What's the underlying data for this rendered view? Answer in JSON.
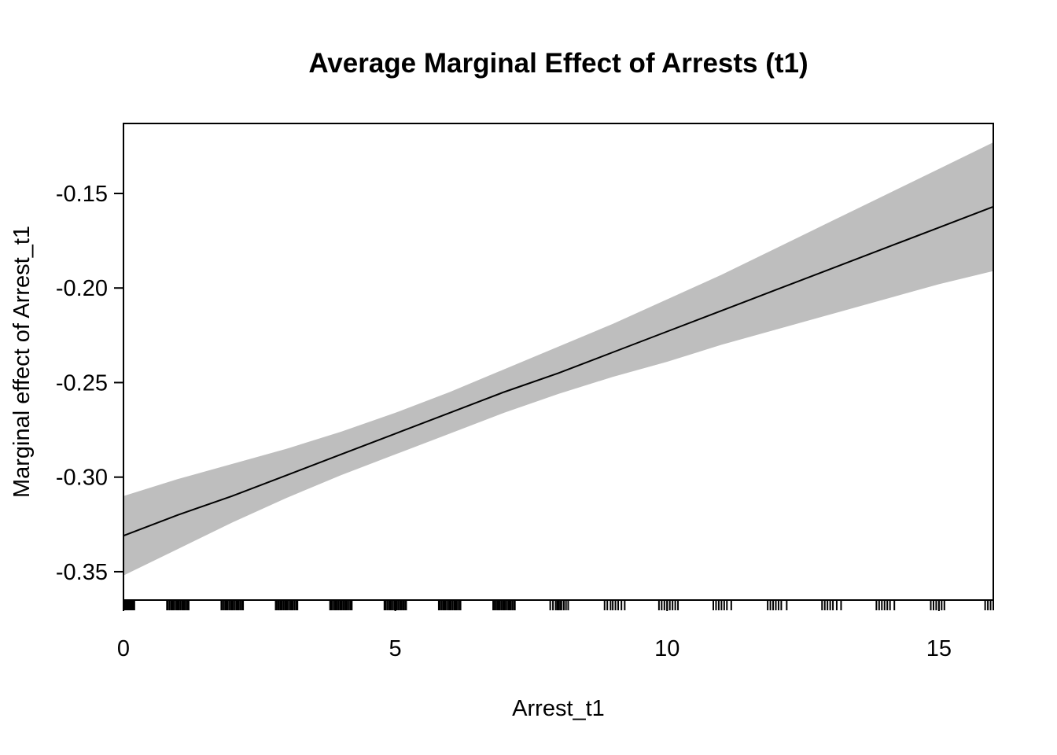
{
  "chart_data": {
    "type": "line",
    "title": "Average Marginal Effect of Arrests (t1)",
    "xlabel": "Arrest_t1",
    "ylabel": "Marginal effect of Arrest_t1",
    "xlim": [
      0,
      16
    ],
    "ylim": [
      -0.365,
      -0.113
    ],
    "xticks": [
      0,
      5,
      10,
      15
    ],
    "xtick_labels": [
      "0",
      "5",
      "10",
      "15"
    ],
    "yticks": [
      -0.35,
      -0.3,
      -0.25,
      -0.2,
      -0.15
    ],
    "ytick_labels": [
      "-0.35",
      "-0.30",
      "-0.25",
      "-0.20",
      "-0.15"
    ],
    "grid": false,
    "series": [
      {
        "x": [
          0,
          1,
          2,
          3,
          4,
          5,
          6,
          7,
          8,
          9,
          10,
          11,
          12,
          13,
          14,
          15,
          16
        ],
        "y": [
          -0.331,
          -0.32,
          -0.31,
          -0.299,
          -0.288,
          -0.277,
          -0.266,
          -0.255,
          -0.245,
          -0.234,
          -0.223,
          -0.212,
          -0.201,
          -0.19,
          -0.179,
          -0.168,
          -0.157
        ],
        "ci_lower": [
          -0.352,
          -0.338,
          -0.324,
          -0.311,
          -0.299,
          -0.288,
          -0.277,
          -0.266,
          -0.256,
          -0.247,
          -0.239,
          -0.23,
          -0.222,
          -0.214,
          -0.206,
          -0.198,
          -0.191
        ],
        "ci_upper": [
          -0.31,
          -0.301,
          -0.293,
          -0.285,
          -0.276,
          -0.266,
          -0.255,
          -0.243,
          -0.231,
          -0.219,
          -0.206,
          -0.193,
          -0.179,
          -0.165,
          -0.151,
          -0.137,
          -0.123
        ],
        "line_color": "#000000",
        "ci_color": "#bebebe"
      }
    ],
    "rug": [
      0,
      0.02,
      0.04,
      0.06,
      0.08,
      0.1,
      0.12,
      0.14,
      0.16,
      0.18,
      0.2,
      0.8,
      0.82,
      0.85,
      0.88,
      0.9,
      0.92,
      0.95,
      0.98,
      1.0,
      1.02,
      1.05,
      1.08,
      1.1,
      1.12,
      1.15,
      1.18,
      1.2,
      1.8,
      1.82,
      1.85,
      1.88,
      1.9,
      1.92,
      1.95,
      1.98,
      2.0,
      2.02,
      2.05,
      2.08,
      2.1,
      2.12,
      2.15,
      2.18,
      2.2,
      2.8,
      2.82,
      2.85,
      2.88,
      2.9,
      2.92,
      2.95,
      2.98,
      3.0,
      3.02,
      3.05,
      3.08,
      3.1,
      3.12,
      3.15,
      3.18,
      3.2,
      3.8,
      3.82,
      3.85,
      3.88,
      3.9,
      3.92,
      3.95,
      3.98,
      4.0,
      4.02,
      4.05,
      4.08,
      4.1,
      4.12,
      4.15,
      4.18,
      4.2,
      4.8,
      4.82,
      4.85,
      4.88,
      4.9,
      4.92,
      4.95,
      4.98,
      5.0,
      5.02,
      5.05,
      5.08,
      5.1,
      5.12,
      5.15,
      5.18,
      5.2,
      5.8,
      5.82,
      5.85,
      5.88,
      5.9,
      5.92,
      5.95,
      5.98,
      6.0,
      6.02,
      6.05,
      6.08,
      6.1,
      6.12,
      6.15,
      6.18,
      6.2,
      6.8,
      6.82,
      6.85,
      6.88,
      6.9,
      6.92,
      6.95,
      6.98,
      7.0,
      7.02,
      7.05,
      7.08,
      7.1,
      7.12,
      7.15,
      7.18,
      7.2,
      7.85,
      7.9,
      7.95,
      7.98,
      8.0,
      8.03,
      8.06,
      8.1,
      8.14,
      8.18,
      8.85,
      8.9,
      8.96,
      9.0,
      9.05,
      9.1,
      9.16,
      9.22,
      9.85,
      9.9,
      9.95,
      10.0,
      10.05,
      10.1,
      10.15,
      10.2,
      10.85,
      10.9,
      10.95,
      11.0,
      11.05,
      11.1,
      11.18,
      11.85,
      11.9,
      11.95,
      12.0,
      12.05,
      12.1,
      12.2,
      12.85,
      12.9,
      12.95,
      13.0,
      13.05,
      13.12,
      13.2,
      13.85,
      13.9,
      13.95,
      14.0,
      14.05,
      14.1,
      14.18,
      14.85,
      14.9,
      14.95,
      15.0,
      15.05,
      15.1,
      15.85,
      15.9,
      15.95,
      16.0
    ]
  }
}
